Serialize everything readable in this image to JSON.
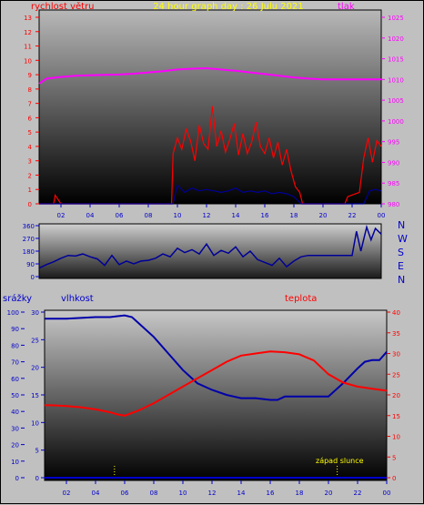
{
  "colors": {
    "wind": "#ff0000",
    "pressure": "#ff00ff",
    "direction": "#000099",
    "humidity": "#0000aa",
    "temperature": "#ff0000",
    "rain": "#0000cc",
    "sunset": "#ffff00",
    "title": "#ffff00",
    "axis_wind": "#ff0000",
    "axis_pressure": "#ff00ff",
    "axis_blue": "#0000cc"
  },
  "chart_data": [
    {
      "type": "line",
      "title": "24 hour graph day : 26 Julu 2021",
      "x_ticks": [
        "02",
        "04",
        "06",
        "08",
        "10",
        "12",
        "14",
        "16",
        "18",
        "20",
        "22",
        "00"
      ],
      "left_label": "rychlost větru",
      "right_label": "tlak",
      "left_ticks": [
        "0",
        "1",
        "2",
        "3",
        "4",
        "5",
        "6",
        "7",
        "8",
        "9",
        "10",
        "11",
        "12",
        "13"
      ],
      "right_ticks": [
        "980",
        "985",
        "990",
        "995",
        "1000",
        "1005",
        "1010",
        "1015",
        "1020",
        "1025"
      ],
      "ylim_left": [
        0,
        13
      ],
      "ylim_right": [
        980,
        1025
      ],
      "xlim_hours": [
        0.5,
        24
      ],
      "series": [
        {
          "key": "pressure",
          "axis": "right",
          "hours": [
            0.5,
            1,
            2,
            3,
            4,
            5,
            6,
            7,
            8,
            9,
            10,
            11,
            12,
            13,
            14,
            15,
            16,
            17,
            18,
            19,
            20,
            21,
            22,
            23,
            24
          ],
          "values": [
            1009.0,
            1010.2,
            1010.6,
            1010.9,
            1011.0,
            1011.1,
            1011.2,
            1011.4,
            1011.7,
            1012.0,
            1012.4,
            1012.6,
            1012.7,
            1012.4,
            1012.1,
            1011.7,
            1011.3,
            1010.9,
            1010.5,
            1010.2,
            1010.0,
            1010.0,
            1010.0,
            1010.0,
            1010.0
          ]
        },
        {
          "key": "wind_gust",
          "axis": "left",
          "hours": [
            0.5,
            1.5,
            1.6,
            2,
            9.6,
            9.7,
            10,
            10.3,
            10.6,
            10.9,
            11.2,
            11.5,
            11.8,
            12.1,
            12.4,
            12.7,
            13,
            13.3,
            13.6,
            13.9,
            14.2,
            14.5,
            14.8,
            15.1,
            15.4,
            15.7,
            16,
            16.3,
            16.6,
            16.9,
            17.2,
            17.5,
            17.8,
            18.1,
            18.4,
            18.6,
            21.5,
            21.7,
            22.5,
            22.8,
            23.1,
            23.4,
            23.7,
            24
          ],
          "values": [
            0,
            0,
            0.6,
            0,
            0,
            3.5,
            4.6,
            3.8,
            5.2,
            4.4,
            3.0,
            5.5,
            4.2,
            3.8,
            6.8,
            4.0,
            5.1,
            3.6,
            4.5,
            5.6,
            3.4,
            4.9,
            3.5,
            4.3,
            5.7,
            4.0,
            3.5,
            4.6,
            3.2,
            4.3,
            2.7,
            3.8,
            2.3,
            1.2,
            0.8,
            0,
            0,
            0.5,
            0.8,
            3.2,
            4.6,
            2.9,
            4.4,
            4.0
          ]
        },
        {
          "key": "wind_avg",
          "axis": "left",
          "hours": [
            0.5,
            9.7,
            10,
            10.5,
            11,
            11.5,
            12,
            12.5,
            13,
            13.5,
            14,
            14.5,
            15,
            15.5,
            16,
            16.5,
            17,
            17.5,
            18,
            18.5,
            22.8,
            23.2,
            23.6,
            24
          ],
          "values": [
            0,
            0,
            1.3,
            0.8,
            1.1,
            0.9,
            1.0,
            0.9,
            0.8,
            0.9,
            1.1,
            0.8,
            0.9,
            0.8,
            0.9,
            0.7,
            0.8,
            0.7,
            0.5,
            0,
            0,
            0.9,
            1.0,
            0.9
          ]
        }
      ]
    },
    {
      "type": "line",
      "x_ticks": [],
      "left_ticks": [
        "0",
        "90",
        "180",
        "270",
        "360"
      ],
      "right_labels": [
        "N",
        "W",
        "S",
        "E",
        "N"
      ],
      "ylim": [
        0,
        360
      ],
      "xlim_hours": [
        0.5,
        24
      ],
      "series": [
        {
          "key": "direction",
          "hours": [
            0.5,
            1,
            1.5,
            2,
            2.5,
            3,
            3.5,
            4,
            4.5,
            5,
            5.5,
            6,
            6.5,
            7,
            7.5,
            8,
            8.5,
            9,
            9.5,
            10,
            10.5,
            11,
            11.5,
            12,
            12.5,
            13,
            13.5,
            14,
            14.5,
            15,
            15.5,
            16,
            16.5,
            17,
            17.5,
            18,
            18.5,
            19,
            19.5,
            20,
            20.5,
            21,
            21.5,
            22,
            22.3,
            22.6,
            23,
            23.3,
            23.6,
            24
          ],
          "values": [
            60,
            85,
            105,
            130,
            150,
            145,
            160,
            140,
            125,
            80,
            150,
            85,
            110,
            90,
            110,
            115,
            130,
            160,
            140,
            200,
            170,
            190,
            160,
            230,
            150,
            185,
            165,
            210,
            140,
            180,
            120,
            100,
            80,
            130,
            70,
            110,
            140,
            150,
            150,
            150,
            150,
            150,
            150,
            150,
            320,
            180,
            350,
            260,
            340,
            300
          ]
        }
      ]
    },
    {
      "type": "line",
      "x_ticks": [
        "02",
        "04",
        "06",
        "08",
        "10",
        "12",
        "14",
        "16",
        "18",
        "20",
        "22",
        "00"
      ],
      "left_label_rain": "srážky",
      "left_label_humidity": "vlhkost",
      "right_label": "teplota",
      "rain_ticks": [
        "0",
        "10",
        "20",
        "30",
        "40",
        "50",
        "60",
        "70",
        "80",
        "90",
        "100"
      ],
      "humidity_ticks": [
        "0",
        "5",
        "10",
        "15",
        "20",
        "25",
        "30"
      ],
      "temperature_ticks": [
        "0",
        "5",
        "10",
        "15",
        "20",
        "25",
        "30",
        "35",
        "40"
      ],
      "ylim_rain": [
        0,
        100
      ],
      "ylim_humidity": [
        0,
        30
      ],
      "ylim_temperature": [
        0,
        40
      ],
      "xlim_hours": [
        0.5,
        24
      ],
      "annotation": {
        "text": "západ slunce",
        "hour": 20.5
      },
      "markers": [
        {
          "hour": 5.3
        },
        {
          "hour": 20.6
        }
      ],
      "series": [
        {
          "key": "humidity",
          "axis": "rain",
          "hours": [
            0.5,
            1,
            2,
            3,
            4,
            5,
            6,
            6.5,
            7,
            8,
            9,
            10,
            10.5,
            11,
            12,
            13,
            14,
            15,
            16,
            16.5,
            17,
            18,
            19,
            20,
            21,
            22,
            22.5,
            23,
            23.5,
            24
          ],
          "values": [
            96,
            96,
            96,
            96.5,
            97,
            97,
            98,
            97,
            93,
            85,
            75,
            65,
            61,
            57,
            53,
            50,
            48,
            48,
            47,
            47,
            49,
            49,
            49,
            49,
            57,
            66,
            70,
            71,
            71,
            76
          ]
        },
        {
          "key": "temperature",
          "axis": "temperature",
          "hours": [
            0.5,
            1,
            2,
            3,
            4,
            5,
            5.5,
            6,
            7,
            8,
            9,
            10,
            11,
            12,
            13,
            14,
            15,
            16,
            17,
            18,
            19,
            20,
            21,
            22,
            23,
            24
          ],
          "values": [
            17.5,
            17.5,
            17.3,
            17.0,
            16.5,
            15.8,
            15.3,
            15.0,
            16.3,
            18.0,
            20.0,
            22.0,
            24.0,
            26.0,
            28.0,
            29.5,
            30.0,
            30.5,
            30.3,
            29.8,
            28.3,
            25.0,
            23.0,
            22.0,
            21.5,
            21.0
          ]
        }
      ]
    }
  ]
}
